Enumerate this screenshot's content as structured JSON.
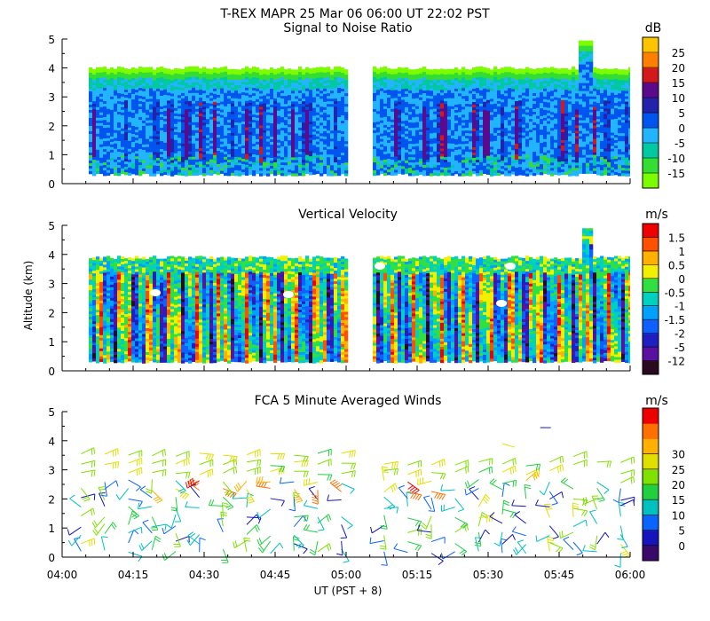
{
  "title": "T-REX   MAPR 25 Mar 06   06:00 UT   22:02   PST",
  "chart_data": [
    {
      "type": "heatmap",
      "title": "Signal to Noise Ratio",
      "ylabel": "",
      "ylim": [
        0,
        5
      ],
      "yticks": [
        "0",
        "1",
        "2",
        "3",
        "4",
        "5"
      ],
      "unit": "dB",
      "colorbar": [
        "-15",
        "-10",
        "-5",
        "0",
        "5",
        "10",
        "15",
        "20",
        "25"
      ],
      "colors": [
        "#7cfc00",
        "#33dd33",
        "#00c8a0",
        "#22b4ff",
        "#0055ee",
        "#2222aa",
        "#5a0a8a",
        "#d31a1a",
        "#ff7f00",
        "#ffc400"
      ],
      "data_gap": [
        "05:00",
        "05:05"
      ],
      "echo_top_km": 4.0
    },
    {
      "type": "heatmap",
      "title": "Vertical Velocity",
      "ylabel": "Altitude (km)",
      "ylim": [
        0,
        5
      ],
      "yticks": [
        "0",
        "1",
        "2",
        "3",
        "4",
        "5"
      ],
      "unit": "m/s",
      "colorbar": [
        "-12",
        "-5",
        "-2",
        "-1.5",
        "-1",
        "-0.5",
        "0",
        "0.5",
        "1",
        "1.5"
      ],
      "colors": [
        "#2a0a1e",
        "#5a10a0",
        "#2020c0",
        "#1060ff",
        "#00a0ff",
        "#00d0c0",
        "#30e040",
        "#f0f000",
        "#ffb000",
        "#ff5000",
        "#ee0000"
      ],
      "data_gap": [
        "05:00",
        "05:05"
      ],
      "echo_top_km": 3.9
    },
    {
      "type": "scatter",
      "title": "FCA 5 Minute Averaged Winds",
      "ylabel": "",
      "ylim": [
        0,
        5
      ],
      "yticks": [
        "0",
        "1",
        "2",
        "3",
        "4",
        "5"
      ],
      "unit": "m/s",
      "colorbar": [
        "0",
        "5",
        "10",
        "15",
        "20",
        "25",
        "30"
      ],
      "colors": [
        "#3a0a6a",
        "#1515bb",
        "#0a64ff",
        "#00c0c0",
        "#20d040",
        "#80e000",
        "#e0e000",
        "#ffb000",
        "#ff7000",
        "#ee0000"
      ],
      "xlabel": "UT  (PST + 8)",
      "xticks": [
        "04:00",
        "04:15",
        "04:30",
        "04:45",
        "05:00",
        "05:15",
        "05:30",
        "05:45",
        "06:00"
      ],
      "wind_barb_columns_min": [
        4,
        9,
        14,
        19,
        24,
        29,
        34,
        39,
        44,
        49,
        54,
        59,
        68,
        73,
        78,
        83,
        88,
        93,
        98,
        103,
        108,
        113,
        118
      ],
      "wind_barb_heights_km": [
        0.2,
        0.5,
        0.8,
        1.1,
        1.4,
        1.7,
        2.0,
        2.3,
        2.6,
        2.9,
        3.2,
        3.5
      ]
    }
  ]
}
